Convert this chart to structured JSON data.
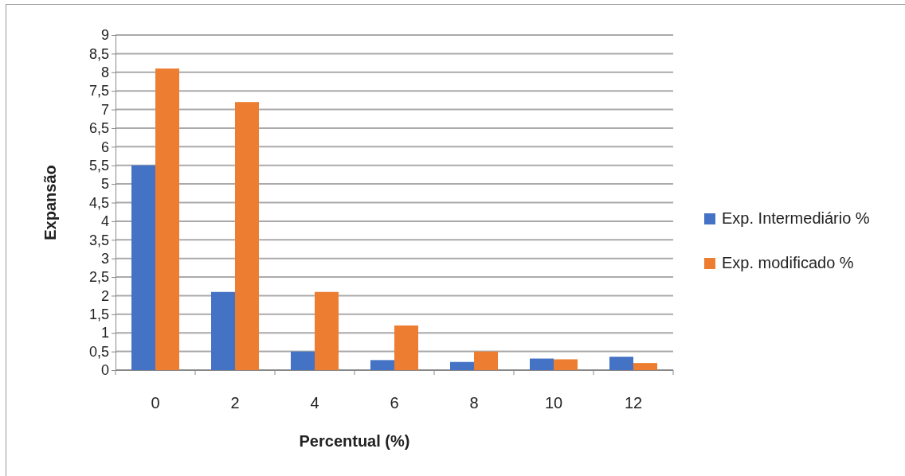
{
  "chart_data": {
    "type": "bar",
    "xlabel": "Percentual (%)",
    "ylabel": "Expansão",
    "categories": [
      "0",
      "2",
      "4",
      "6",
      "8",
      "10",
      "12"
    ],
    "series": [
      {
        "name": "Exp. Intermediário %",
        "color": "#4472c4",
        "values": [
          5.5,
          2.1,
          0.5,
          0.27,
          0.22,
          0.31,
          0.36
        ]
      },
      {
        "name": "Exp. modificado %",
        "color": "#ed7d31",
        "values": [
          8.1,
          7.2,
          2.1,
          1.2,
          0.5,
          0.29,
          0.19
        ]
      }
    ],
    "ylim": [
      0,
      9
    ],
    "yticks": [
      0,
      {
        "value": 0.5,
        "label": "0,5"
      },
      1,
      {
        "value": 1.5,
        "label": "1,5"
      },
      2,
      {
        "value": 2.5,
        "label": "2,5"
      },
      3,
      {
        "value": 3.5,
        "label": "3,5"
      },
      4,
      {
        "value": 4.5,
        "label": "4,5"
      },
      5,
      {
        "value": 5.5,
        "label": "5,5"
      },
      6,
      {
        "value": 6.5,
        "label": "6,5"
      },
      7,
      {
        "value": 7.5,
        "label": "7,5"
      },
      8,
      {
        "value": 8.5,
        "label": "8,5"
      },
      9
    ],
    "grid": "y",
    "legend": "right"
  }
}
